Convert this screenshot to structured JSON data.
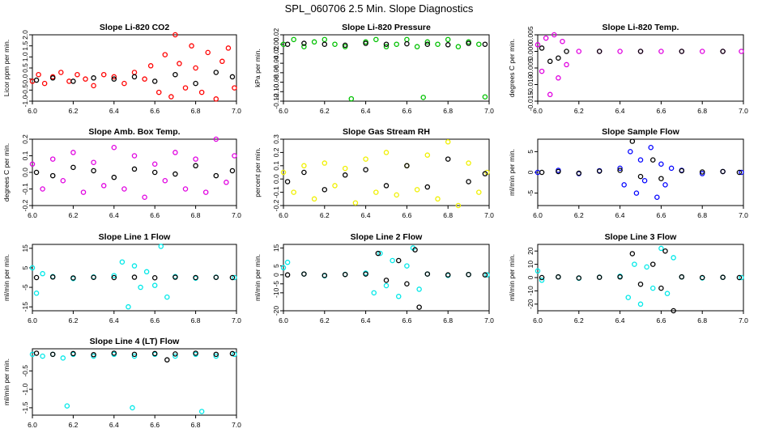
{
  "figure": {
    "title": "SPL_060706  2.5 Min. Slope Diagnostics"
  },
  "chart_data": [
    {
      "type": "scatter",
      "title": "Slope Li-820 CO2",
      "ylabel": "Licor ppm per min.",
      "xlim": [
        6.0,
        7.0
      ],
      "ylim": [
        -1.0,
        2.0
      ],
      "xticks": [
        "6.0",
        "6.2",
        "6.4",
        "6.6",
        "6.8",
        "7.0"
      ],
      "yticks": [
        "-1.0",
        "-0.5",
        "0.0",
        "0.5",
        "1.0",
        "1.5",
        "2.0"
      ],
      "colors": [
        "#ff0000",
        "#000000"
      ],
      "series": [
        {
          "name": "all",
          "x": [
            6.0,
            6.03,
            6.06,
            6.1,
            6.14,
            6.18,
            6.22,
            6.26,
            6.3,
            6.35,
            6.4,
            6.45,
            6.5,
            6.55,
            6.58,
            6.62,
            6.65,
            6.68,
            6.7,
            6.72,
            6.75,
            6.78,
            6.8,
            6.83,
            6.86,
            6.9,
            6.93,
            6.96,
            6.99
          ],
          "y": [
            -0.1,
            0.2,
            -0.2,
            0.1,
            0.3,
            -0.1,
            0.2,
            0.0,
            -0.3,
            0.2,
            0.1,
            -0.2,
            0.3,
            0.0,
            0.6,
            -0.6,
            1.1,
            -0.8,
            2.0,
            0.7,
            -0.4,
            1.5,
            0.5,
            -0.6,
            1.2,
            -0.9,
            0.8,
            1.4,
            -0.4
          ]
        },
        {
          "name": "daily",
          "x": [
            6.02,
            6.1,
            6.2,
            6.3,
            6.4,
            6.5,
            6.6,
            6.7,
            6.8,
            6.9,
            6.98
          ],
          "y": [
            -0.05,
            0.05,
            -0.1,
            0.05,
            0.0,
            0.1,
            -0.1,
            0.2,
            -0.2,
            0.3,
            0.1
          ]
        }
      ]
    },
    {
      "type": "scatter",
      "title": "Slope Li-820 Pressure",
      "ylabel": "kPa per min.",
      "xlim": [
        6.0,
        7.0
      ],
      "ylim": [
        -0.12,
        0.02
      ],
      "xticks": [
        "6.0",
        "6.2",
        "6.4",
        "6.6",
        "6.8",
        "7.0"
      ],
      "yticks": [
        "-0.12",
        "-0.10",
        "-0.08",
        "-0.06",
        "-0.04",
        "-0.02",
        "0.00",
        "0.02"
      ],
      "colors": [
        "#00c000",
        "#000000"
      ],
      "series": [
        {
          "name": "all",
          "x": [
            6.0,
            6.05,
            6.1,
            6.15,
            6.2,
            6.25,
            6.3,
            6.33,
            6.4,
            6.45,
            6.5,
            6.55,
            6.6,
            6.65,
            6.68,
            6.7,
            6.75,
            6.8,
            6.85,
            6.9,
            6.95,
            6.98
          ],
          "y": [
            0.0,
            0.01,
            -0.005,
            0.005,
            0.01,
            0.0,
            -0.005,
            -0.115,
            0.005,
            0.01,
            -0.005,
            0.0,
            0.01,
            -0.005,
            -0.112,
            0.005,
            0.0,
            0.01,
            -0.005,
            0.005,
            0.0,
            -0.111
          ]
        },
        {
          "name": "daily",
          "x": [
            6.02,
            6.1,
            6.2,
            6.3,
            6.4,
            6.5,
            6.6,
            6.7,
            6.8,
            6.9,
            6.98
          ],
          "y": [
            0.0,
            0.002,
            0.0,
            -0.002,
            0.002,
            0.0,
            0.001,
            0.0,
            -0.001,
            0.002,
            0.0
          ]
        }
      ]
    },
    {
      "type": "scatter",
      "title": "Slope Li-820 Temp.",
      "ylabel": "degrees C per min.",
      "xlim": [
        6.0,
        7.0
      ],
      "ylim": [
        -0.015,
        0.005
      ],
      "xticks": [
        "6.0",
        "6.2",
        "6.4",
        "6.6",
        "6.8",
        "7.0"
      ],
      "yticks": [
        "-0.015",
        "-0.010",
        "-0.005",
        "0.000",
        "0.005"
      ],
      "colors": [
        "#e000e0",
        "#000000"
      ],
      "series": [
        {
          "name": "all",
          "x": [
            6.0,
            6.02,
            6.04,
            6.06,
            6.08,
            6.1,
            6.12,
            6.14,
            6.2,
            6.3,
            6.4,
            6.5,
            6.6,
            6.7,
            6.8,
            6.9,
            6.99
          ],
          "y": [
            0.002,
            -0.006,
            0.004,
            -0.013,
            0.005,
            -0.008,
            0.003,
            -0.004,
            0.0,
            0.0,
            0.0,
            0.0,
            0.0,
            0.0,
            0.0,
            0.0,
            0.0
          ]
        },
        {
          "name": "daily",
          "x": [
            6.02,
            6.06,
            6.1,
            6.14,
            6.3,
            6.5,
            6.7,
            6.9
          ],
          "y": [
            0.001,
            -0.003,
            -0.002,
            0.0,
            0.0,
            0.0,
            0.0,
            0.0
          ]
        }
      ]
    },
    {
      "type": "scatter",
      "title": "Slope Amb. Box Temp.",
      "ylabel": "degrees C per min.",
      "xlim": [
        6.0,
        7.0
      ],
      "ylim": [
        -0.2,
        0.2
      ],
      "xticks": [
        "6.0",
        "6.2",
        "6.4",
        "6.6",
        "6.8",
        "7.0"
      ],
      "yticks": [
        "-0.2",
        "-0.1",
        "0.0",
        "0.1",
        "0.2"
      ],
      "colors": [
        "#e000e0",
        "#000000"
      ],
      "series": [
        {
          "name": "all",
          "x": [
            6.0,
            6.05,
            6.1,
            6.15,
            6.2,
            6.25,
            6.3,
            6.35,
            6.4,
            6.45,
            6.5,
            6.55,
            6.6,
            6.65,
            6.7,
            6.75,
            6.8,
            6.85,
            6.9,
            6.95,
            6.99
          ],
          "y": [
            0.05,
            -0.1,
            0.08,
            -0.05,
            0.12,
            -0.12,
            0.06,
            -0.08,
            0.15,
            -0.1,
            0.1,
            -0.15,
            0.05,
            -0.05,
            0.12,
            -0.1,
            0.08,
            -0.12,
            0.2,
            -0.06,
            0.1
          ]
        },
        {
          "name": "daily",
          "x": [
            6.02,
            6.1,
            6.2,
            6.3,
            6.4,
            6.5,
            6.6,
            6.7,
            6.8,
            6.9,
            6.98
          ],
          "y": [
            0.0,
            -0.02,
            0.03,
            0.01,
            -0.03,
            0.02,
            0.0,
            -0.01,
            0.04,
            -0.02,
            0.01
          ]
        }
      ]
    },
    {
      "type": "scatter",
      "title": "Slope Gas Stream RH",
      "ylabel": "percent per min.",
      "xlim": [
        6.0,
        7.0
      ],
      "ylim": [
        -0.2,
        0.3
      ],
      "xticks": [
        "6.0",
        "6.2",
        "6.4",
        "6.6",
        "6.8",
        "7.0"
      ],
      "yticks": [
        "-0.2",
        "-0.1",
        "0.0",
        "0.1",
        "0.2",
        "0.3"
      ],
      "colors": [
        "#f0f000",
        "#000000"
      ],
      "series": [
        {
          "name": "all",
          "x": [
            6.0,
            6.05,
            6.1,
            6.15,
            6.2,
            6.25,
            6.3,
            6.35,
            6.4,
            6.45,
            6.5,
            6.55,
            6.6,
            6.65,
            6.7,
            6.75,
            6.8,
            6.85,
            6.9,
            6.95,
            6.99
          ],
          "y": [
            0.05,
            -0.1,
            0.1,
            -0.15,
            0.12,
            -0.05,
            0.08,
            -0.18,
            0.15,
            -0.1,
            0.2,
            -0.12,
            0.1,
            -0.08,
            0.18,
            -0.15,
            0.28,
            -0.2,
            0.12,
            -0.1,
            0.05
          ]
        },
        {
          "name": "daily",
          "x": [
            6.02,
            6.1,
            6.2,
            6.3,
            6.4,
            6.5,
            6.6,
            6.7,
            6.8,
            6.9,
            6.98
          ],
          "y": [
            -0.02,
            0.05,
            -0.08,
            0.03,
            0.07,
            -0.05,
            0.1,
            -0.06,
            0.15,
            -0.02,
            0.04
          ]
        }
      ]
    },
    {
      "type": "scatter",
      "title": "Slope Sample Flow",
      "ylabel": "ml/min per min.",
      "xlim": [
        6.0,
        7.0
      ],
      "ylim": [
        -8,
        8
      ],
      "xticks": [
        "6.0",
        "6.2",
        "6.4",
        "6.6",
        "6.8",
        "7.0"
      ],
      "yticks": [
        "-5",
        "0",
        "5"
      ],
      "colors": [
        "#0000ff",
        "#000000"
      ],
      "series": [
        {
          "name": "all",
          "x": [
            6.0,
            6.1,
            6.2,
            6.3,
            6.4,
            6.42,
            6.45,
            6.48,
            6.5,
            6.52,
            6.55,
            6.58,
            6.6,
            6.62,
            6.65,
            6.7,
            6.8,
            6.9,
            6.99
          ],
          "y": [
            0.0,
            0.5,
            -0.3,
            0.4,
            1.0,
            -3.0,
            5.0,
            -5.0,
            3.0,
            -2.0,
            6.0,
            -6.0,
            2.0,
            -3.0,
            1.0,
            0.5,
            -0.3,
            0.2,
            0.0
          ]
        },
        {
          "name": "daily",
          "x": [
            6.02,
            6.1,
            6.2,
            6.3,
            6.4,
            6.46,
            6.5,
            6.56,
            6.6,
            6.7,
            6.8,
            6.9,
            6.98
          ],
          "y": [
            0.0,
            0.2,
            -0.2,
            0.3,
            0.5,
            7.5,
            -1.0,
            3.0,
            -1.5,
            0.4,
            0.1,
            0.2,
            0.0
          ]
        }
      ]
    },
    {
      "type": "scatter",
      "title": "Slope Line 1 Flow",
      "ylabel": "ml/min per min.",
      "xlim": [
        6.0,
        7.0
      ],
      "ylim": [
        -17,
        17
      ],
      "xticks": [
        "6.0",
        "6.2",
        "6.4",
        "6.6",
        "6.8",
        "7.0"
      ],
      "yticks": [
        "-15",
        "-5",
        "5",
        "15"
      ],
      "colors": [
        "#00e8e8",
        "#000000"
      ],
      "series": [
        {
          "name": "all",
          "x": [
            6.0,
            6.02,
            6.05,
            6.1,
            6.2,
            6.3,
            6.4,
            6.44,
            6.47,
            6.5,
            6.53,
            6.56,
            6.6,
            6.63,
            6.66,
            6.7,
            6.8,
            6.9,
            6.99
          ],
          "y": [
            5.0,
            -8.0,
            2.0,
            0.5,
            -0.5,
            0.3,
            1.0,
            8.0,
            -15.0,
            6.0,
            -5.0,
            3.0,
            -4.0,
            16.0,
            -10.0,
            0.5,
            -0.3,
            0.2,
            0.0
          ]
        },
        {
          "name": "daily",
          "x": [
            6.02,
            6.1,
            6.2,
            6.3,
            6.4,
            6.5,
            6.6,
            6.7,
            6.8,
            6.9,
            6.98
          ],
          "y": [
            0.0,
            0.3,
            -0.2,
            0.1,
            0.0,
            0.2,
            -0.1,
            0.2,
            0.0,
            0.1,
            0.0
          ]
        }
      ]
    },
    {
      "type": "scatter",
      "title": "Slope Line 2 Flow",
      "ylabel": "ml/min per min.",
      "xlim": [
        6.0,
        7.0
      ],
      "ylim": [
        -20,
        17
      ],
      "xticks": [
        "6.0",
        "6.2",
        "6.4",
        "6.6",
        "6.8",
        "7.0"
      ],
      "yticks": [
        "-20",
        "-10",
        "-5",
        "0",
        "5",
        "15"
      ],
      "colors": [
        "#00e8e8",
        "#000000"
      ],
      "series": [
        {
          "name": "all",
          "x": [
            6.0,
            6.02,
            6.1,
            6.2,
            6.3,
            6.4,
            6.44,
            6.47,
            6.5,
            6.53,
            6.56,
            6.6,
            6.63,
            6.66,
            6.7,
            6.8,
            6.9,
            6.99
          ],
          "y": [
            4.0,
            7.0,
            0.5,
            -0.5,
            0.3,
            1.0,
            -10.0,
            12.0,
            -6.0,
            8.0,
            -12.0,
            5.0,
            15.0,
            -8.0,
            0.5,
            -0.3,
            0.2,
            0.0
          ]
        },
        {
          "name": "daily",
          "x": [
            6.02,
            6.1,
            6.2,
            6.3,
            6.4,
            6.46,
            6.5,
            6.56,
            6.6,
            6.64,
            6.66,
            6.7,
            6.8,
            6.9,
            6.98
          ],
          "y": [
            0.0,
            0.5,
            -0.3,
            0.2,
            0.5,
            12.0,
            -3.0,
            8.0,
            -5.0,
            14.0,
            -18.0,
            0.5,
            0.0,
            0.2,
            0.0
          ]
        }
      ]
    },
    {
      "type": "scatter",
      "title": "Slope Line 3 Flow",
      "ylabel": "ml/min per min.",
      "xlim": [
        6.0,
        7.0
      ],
      "ylim": [
        -25,
        25
      ],
      "xticks": [
        "6.0",
        "6.2",
        "6.4",
        "6.6",
        "6.8",
        "7.0"
      ],
      "yticks": [
        "-20",
        "-10",
        "0",
        "10",
        "20"
      ],
      "colors": [
        "#00e8e8",
        "#000000"
      ],
      "series": [
        {
          "name": "all",
          "x": [
            6.0,
            6.02,
            6.1,
            6.2,
            6.3,
            6.4,
            6.44,
            6.47,
            6.5,
            6.53,
            6.56,
            6.6,
            6.63,
            6.66,
            6.7,
            6.8,
            6.9,
            6.99
          ],
          "y": [
            5.0,
            -2.0,
            0.5,
            -0.5,
            0.3,
            1.0,
            -15.0,
            10.0,
            -20.0,
            8.0,
            -8.0,
            22.0,
            -12.0,
            15.0,
            0.5,
            -0.3,
            0.2,
            0.0
          ]
        },
        {
          "name": "daily",
          "x": [
            6.02,
            6.1,
            6.2,
            6.3,
            6.4,
            6.46,
            6.5,
            6.56,
            6.6,
            6.62,
            6.66,
            6.7,
            6.8,
            6.9,
            6.98
          ],
          "y": [
            0.0,
            0.5,
            -0.3,
            0.2,
            0.5,
            18.0,
            -5.0,
            10.0,
            -8.0,
            20.0,
            -25.0,
            0.5,
            0.0,
            0.2,
            0.0
          ]
        }
      ]
    },
    {
      "type": "scatter",
      "title": "Slope Line 4 (LT) Flow",
      "ylabel": "ml/min per min.",
      "xlim": [
        6.0,
        7.0
      ],
      "ylim": [
        -1.7,
        0.1
      ],
      "xticks": [
        "6.0",
        "6.2",
        "6.4",
        "6.6",
        "6.8",
        "7.0"
      ],
      "yticks": [
        "-1.5",
        "-1.0",
        "-0.5"
      ],
      "colors": [
        "#00e8e8",
        "#000000"
      ],
      "series": [
        {
          "name": "all",
          "x": [
            6.0,
            6.05,
            6.1,
            6.15,
            6.17,
            6.2,
            6.3,
            6.4,
            6.49,
            6.5,
            6.6,
            6.7,
            6.8,
            6.83,
            6.9,
            6.99
          ],
          "y": [
            -0.05,
            -0.1,
            -0.05,
            -0.15,
            -1.45,
            -0.05,
            -0.1,
            -0.05,
            -1.5,
            -0.1,
            -0.05,
            -0.1,
            -0.05,
            -1.6,
            -0.1,
            -0.05
          ]
        },
        {
          "name": "daily",
          "x": [
            6.02,
            6.1,
            6.2,
            6.3,
            6.4,
            6.5,
            6.6,
            6.66,
            6.7,
            6.8,
            6.9,
            6.98
          ],
          "y": [
            -0.02,
            -0.05,
            -0.03,
            -0.06,
            -0.02,
            -0.05,
            -0.03,
            -0.2,
            -0.04,
            -0.02,
            -0.05,
            -0.03
          ]
        }
      ]
    }
  ]
}
